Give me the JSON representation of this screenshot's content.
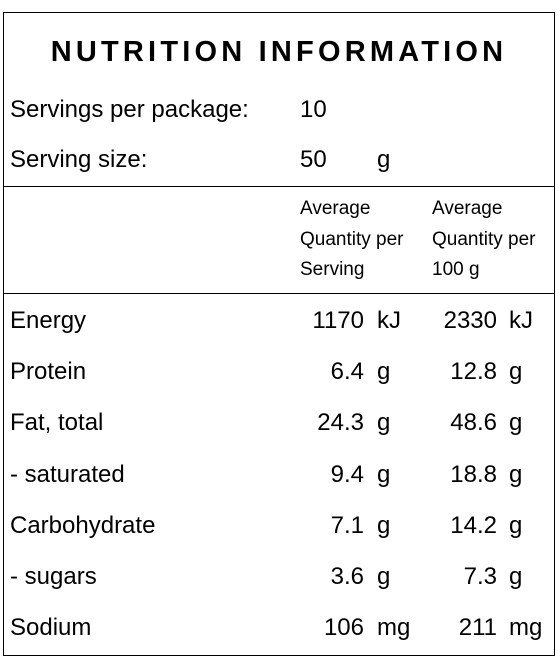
{
  "title": "NUTRITION INFORMATION",
  "servings": {
    "label": "Servings per package:",
    "value": "10"
  },
  "serving_size": {
    "label": "Serving size:",
    "value": "50",
    "unit": "g"
  },
  "columns": [
    "Average Quantity per Serving",
    "Average Quantity per 100 g"
  ],
  "rows": [
    [
      "Energy",
      "1170",
      "kJ",
      "2330",
      "kJ"
    ],
    [
      "Protein",
      "6.4",
      "g",
      "12.8",
      "g"
    ],
    [
      "Fat, total",
      "24.3",
      "g",
      "48.6",
      "g"
    ],
    [
      "- saturated",
      "9.4",
      "g",
      "18.8",
      "g"
    ],
    [
      "Carbohydrate",
      "7.1",
      "g",
      "14.2",
      "g"
    ],
    [
      "- sugars",
      "3.6",
      "g",
      "7.3",
      "g"
    ],
    [
      "Sodium",
      "106",
      "mg",
      "211",
      "mg"
    ]
  ]
}
